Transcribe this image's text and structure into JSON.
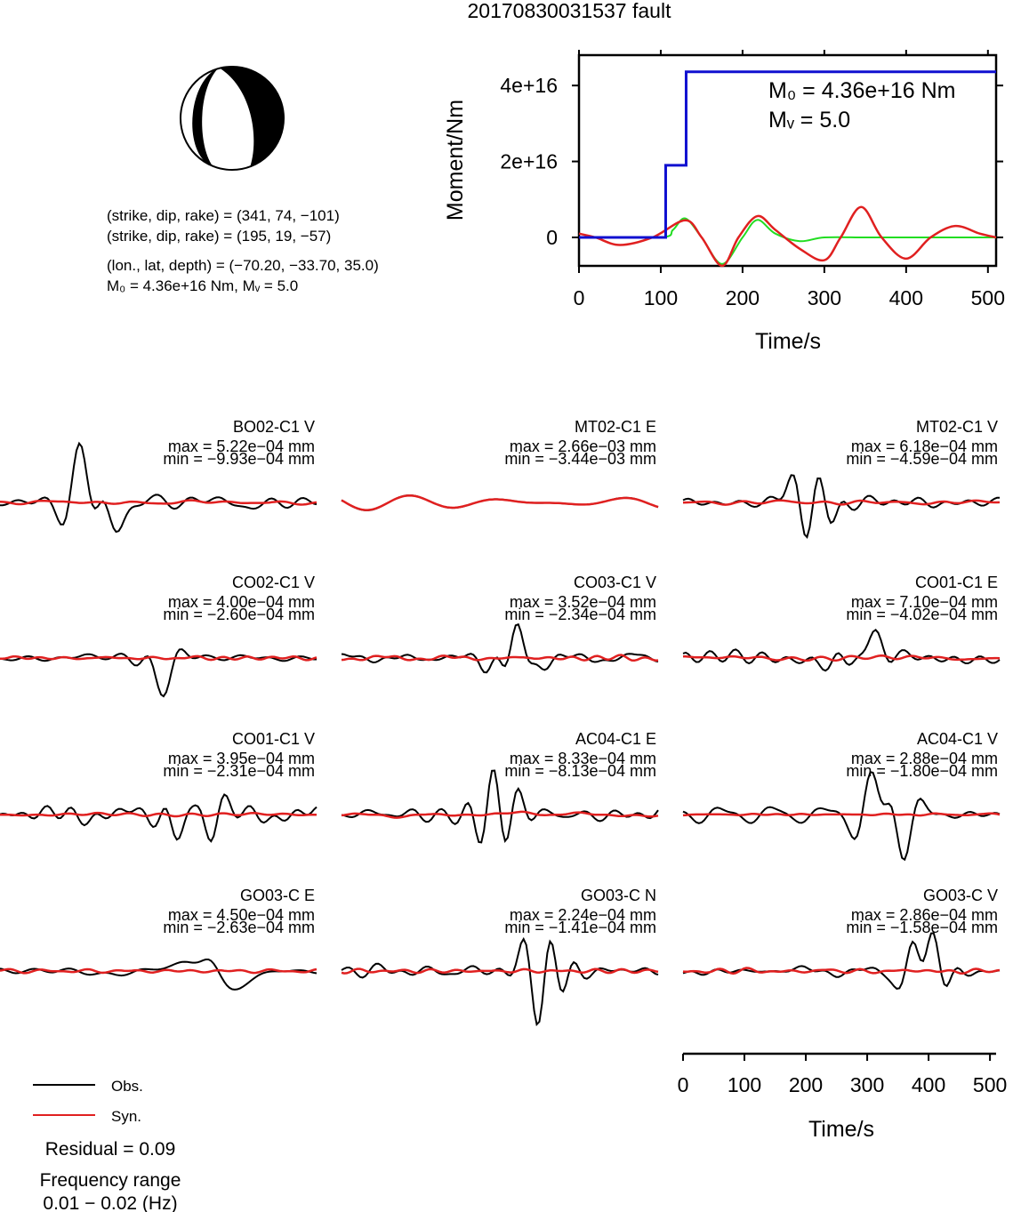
{
  "title": "20170830031537 fault",
  "beachball": {
    "strike1": 341,
    "dip1": 74,
    "rake1": -101,
    "strike2": 195,
    "dip2": 19,
    "rake2": -57
  },
  "info": {
    "line1": "(strike, dip, rake) = (341, 74, −101)",
    "line2": "(strike, dip, rake) = (195, 19, −57)",
    "line3": "(lon., lat, depth) = (−70.20, −33.70, 35.0)",
    "line4": "M₀ = 4.36e+16 Nm, Mᵥ = 5.0"
  },
  "colors": {
    "observed": "#000000",
    "synthetic": "#e02020",
    "moment": "#1010d0",
    "stf_green": "#22dd22"
  },
  "moment_chart": {
    "type": "line",
    "ylabel": "Moment/Nm",
    "xlabel": "Time/s",
    "xlim": [
      0,
      510
    ],
    "ylim": [
      -7500000000000000.0,
      4.8e+16
    ],
    "x_ticks": [
      "0",
      "100",
      "200",
      "300",
      "400",
      "500"
    ],
    "y_ticks": [
      "0",
      "2e+16",
      "4e+16"
    ],
    "annotation_m0": "M₀ = 4.36e+16 Nm",
    "annotation_mw": "Mᵥ = 5.0",
    "moment_series": [
      [
        0,
        0
      ],
      [
        106,
        0
      ],
      [
        106,
        1.9e+16
      ],
      [
        131,
        1.9e+16
      ],
      [
        131,
        4.36e+16
      ],
      [
        510,
        4.36e+16
      ]
    ],
    "stf_green_series": [
      [
        0,
        0
      ],
      [
        100,
        0
      ],
      [
        115,
        2000000000000000.0
      ],
      [
        130,
        5000000000000000.0
      ],
      [
        150,
        0
      ],
      [
        175,
        -7000000000000000.0
      ],
      [
        200,
        0
      ],
      [
        218,
        4600000000000000.0
      ],
      [
        240,
        1000000000000000.0
      ],
      [
        270,
        -1000000000000000.0
      ],
      [
        300,
        0
      ],
      [
        350,
        0
      ],
      [
        400,
        0
      ],
      [
        510,
        0
      ]
    ],
    "wiggle_red_series": [
      [
        0,
        1000000000000000.0
      ],
      [
        20,
        0
      ],
      [
        50,
        -2000000000000000.0
      ],
      [
        90,
        0
      ],
      [
        130,
        4500000000000000.0
      ],
      [
        150,
        0
      ],
      [
        175,
        -7500000000000000.0
      ],
      [
        195,
        0
      ],
      [
        218,
        5600000000000000.0
      ],
      [
        240,
        2000000000000000.0
      ],
      [
        270,
        -3000000000000000.0
      ],
      [
        300,
        -6000000000000000.0
      ],
      [
        320,
        0
      ],
      [
        345,
        8000000000000000.0
      ],
      [
        370,
        0
      ],
      [
        400,
        -5600000000000000.0
      ],
      [
        430,
        0
      ],
      [
        460,
        3000000000000000.0
      ],
      [
        490,
        1000000000000000.0
      ],
      [
        510,
        0
      ]
    ]
  },
  "waveforms": [
    {
      "name": "BO02-C1 V",
      "max": "max = 5.22e−04 mm",
      "min": "min = −9.93e−04 mm"
    },
    {
      "name": "MT02-C1 E",
      "max": "max = 2.66e−03 mm",
      "min": "min = −3.44e−03 mm"
    },
    {
      "name": "MT02-C1 V",
      "max": "max = 6.18e−04 mm",
      "min": "min = −4.59e−04 mm"
    },
    {
      "name": "CO02-C1 V",
      "max": "max = 4.00e−04 mm",
      "min": "min = −2.60e−04 mm"
    },
    {
      "name": "CO03-C1 V",
      "max": "max = 3.52e−04 mm",
      "min": "min = −2.34e−04 mm"
    },
    {
      "name": "CO01-C1 E",
      "max": "max = 7.10e−04 mm",
      "min": "min = −4.02e−04 mm"
    },
    {
      "name": "CO01-C1 V",
      "max": "max = 3.95e−04 mm",
      "min": "min = −2.31e−04 mm"
    },
    {
      "name": "AC04-C1 E",
      "max": "max = 8.33e−04 mm",
      "min": "min = −8.13e−04 mm"
    },
    {
      "name": "AC04-C1 V",
      "max": "max = 2.88e−04 mm",
      "min": "min = −1.80e−04 mm"
    },
    {
      "name": "GO03-C E",
      "max": "max = 4.50e−04 mm",
      "min": "min = −2.63e−04 mm"
    },
    {
      "name": "GO03-C N",
      "max": "max = 2.24e−04 mm",
      "min": "min = −1.41e−04 mm"
    },
    {
      "name": "GO03-C V",
      "max": "max = 2.86e−04 mm",
      "min": "min = −1.58e−04 mm"
    }
  ],
  "time_axis": {
    "xlabel": "Time/s",
    "ticks": [
      "0",
      "100",
      "200",
      "300",
      "400",
      "500"
    ]
  },
  "legend": {
    "obs": "Obs.",
    "syn": "Syn.",
    "residual": "Residual = 0.09",
    "freq_label": "Frequency range",
    "freq_value": "0.01 − 0.02 (Hz)"
  }
}
